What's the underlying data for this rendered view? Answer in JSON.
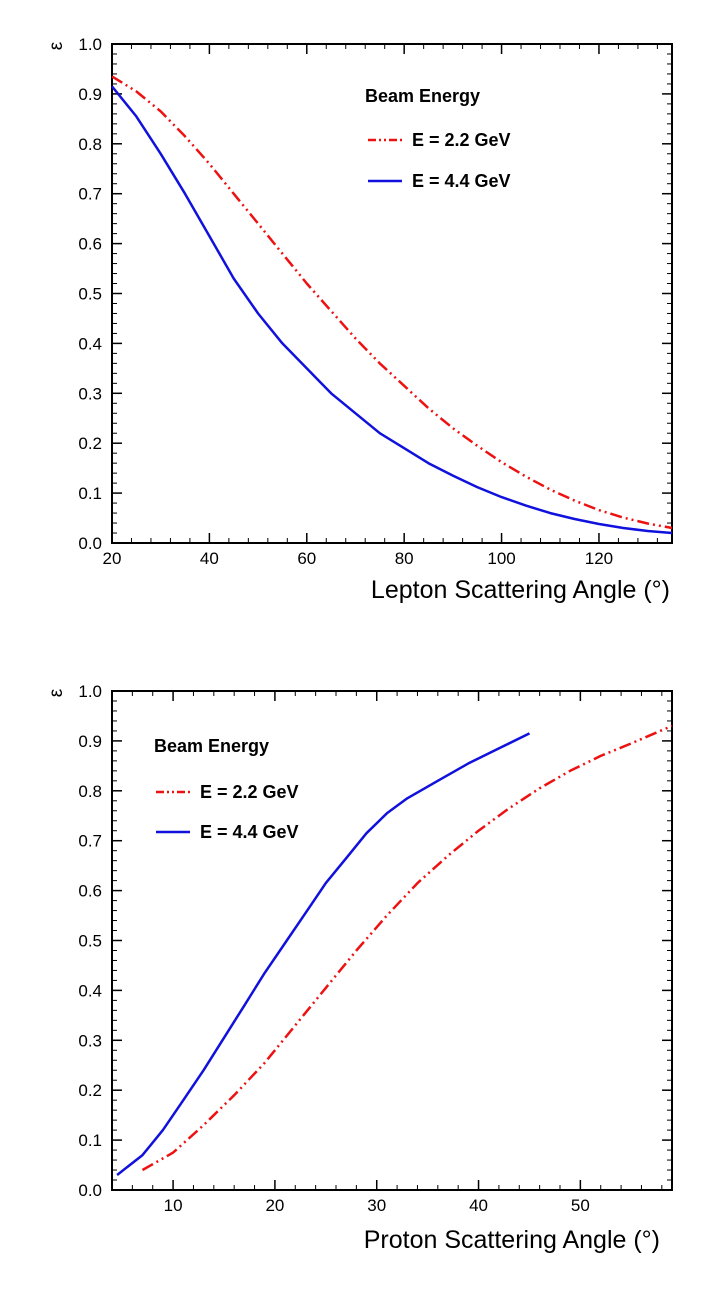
{
  "chart_data": [
    {
      "type": "line",
      "xlabel": "Lepton Scattering Angle (°)",
      "ylabel": "ε",
      "xlim": [
        20,
        135
      ],
      "ylim": [
        0.0,
        1.0
      ],
      "x_ticks": [
        "20",
        "40",
        "60",
        "80",
        "100",
        "120"
      ],
      "y_ticks": [
        "0.0",
        "0.1",
        "0.2",
        "0.3",
        "0.4",
        "0.5",
        "0.6",
        "0.7",
        "0.8",
        "0.9",
        "1.0"
      ],
      "legend_title": "Beam Energy",
      "legend_position": "top-right",
      "series": [
        {
          "name": "E = 2.2 GeV",
          "color": "#ee1111",
          "style": "dash-dot-dot",
          "x": [
            20,
            25,
            30,
            35,
            40,
            45,
            50,
            55,
            60,
            65,
            70,
            75,
            80,
            85,
            90,
            95,
            100,
            105,
            110,
            115,
            120,
            125,
            130,
            135
          ],
          "y": [
            0.935,
            0.905,
            0.865,
            0.815,
            0.76,
            0.7,
            0.64,
            0.58,
            0.52,
            0.465,
            0.41,
            0.36,
            0.315,
            0.27,
            0.23,
            0.195,
            0.162,
            0.133,
            0.107,
            0.085,
            0.066,
            0.051,
            0.039,
            0.03
          ]
        },
        {
          "name": "E = 4.4 GeV",
          "color": "#1111dd",
          "style": "solid",
          "x": [
            20,
            25,
            30,
            35,
            40,
            45,
            50,
            55,
            60,
            65,
            70,
            75,
            80,
            85,
            90,
            95,
            100,
            105,
            110,
            115,
            120,
            125,
            130,
            135
          ],
          "y": [
            0.915,
            0.855,
            0.78,
            0.7,
            0.615,
            0.53,
            0.46,
            0.4,
            0.35,
            0.3,
            0.26,
            0.22,
            0.19,
            0.16,
            0.135,
            0.112,
            0.092,
            0.075,
            0.06,
            0.048,
            0.038,
            0.03,
            0.024,
            0.02
          ]
        }
      ]
    },
    {
      "type": "line",
      "xlabel": "Proton Scattering Angle (°)",
      "ylabel": "ε",
      "xlim": [
        4,
        59
      ],
      "ylim": [
        0.0,
        1.0
      ],
      "x_ticks": [
        "10",
        "20",
        "30",
        "40",
        "50"
      ],
      "y_ticks": [
        "0.0",
        "0.1",
        "0.2",
        "0.3",
        "0.4",
        "0.5",
        "0.6",
        "0.7",
        "0.8",
        "0.9",
        "1.0"
      ],
      "legend_title": "Beam Energy",
      "legend_position": "top-left",
      "series": [
        {
          "name": "E = 2.2 GeV",
          "color": "#ee1111",
          "style": "dash-dot-dot",
          "x": [
            7,
            10,
            13,
            16,
            19,
            22,
            25,
            28,
            31,
            34,
            37,
            40,
            43,
            46,
            49,
            52,
            55,
            59
          ],
          "y": [
            0.04,
            0.075,
            0.13,
            0.19,
            0.255,
            0.33,
            0.405,
            0.48,
            0.55,
            0.615,
            0.67,
            0.72,
            0.765,
            0.805,
            0.84,
            0.87,
            0.895,
            0.93
          ]
        },
        {
          "name": "E = 4.4 GeV",
          "color": "#1111dd",
          "style": "solid",
          "x": [
            4.5,
            7,
            9,
            11,
            13,
            15,
            17,
            19,
            21,
            23,
            25,
            27,
            29,
            31,
            33,
            36,
            39,
            42,
            45
          ],
          "y": [
            0.03,
            0.07,
            0.12,
            0.18,
            0.24,
            0.305,
            0.37,
            0.435,
            0.495,
            0.555,
            0.615,
            0.665,
            0.715,
            0.755,
            0.785,
            0.82,
            0.855,
            0.885,
            0.915
          ]
        }
      ]
    }
  ]
}
